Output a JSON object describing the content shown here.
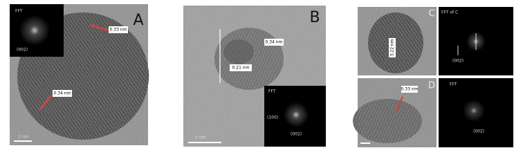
{
  "panels": [
    {
      "label": "A",
      "annotations": [
        "0.33 nm",
        "0.34 nm"
      ],
      "inset": {
        "title": "FFT",
        "spot": "(002)"
      },
      "scale_bar": "2 nm"
    },
    {
      "label": "B",
      "annotations": [
        "0.34 nm",
        "0.21 nm"
      ],
      "inset": {
        "title": "FFT",
        "spots": [
          "(100)",
          "(002)"
        ]
      },
      "scale_bar": "5 nm"
    },
    {
      "label": "C",
      "annotations": [
        "3.22 nm"
      ],
      "fft_title": "FFT of C",
      "fft_spot": "(002)"
    },
    {
      "label": "D",
      "annotations": [
        "0.33 nm"
      ],
      "fft_title": "FFT",
      "fft_spot": "(002)"
    }
  ]
}
